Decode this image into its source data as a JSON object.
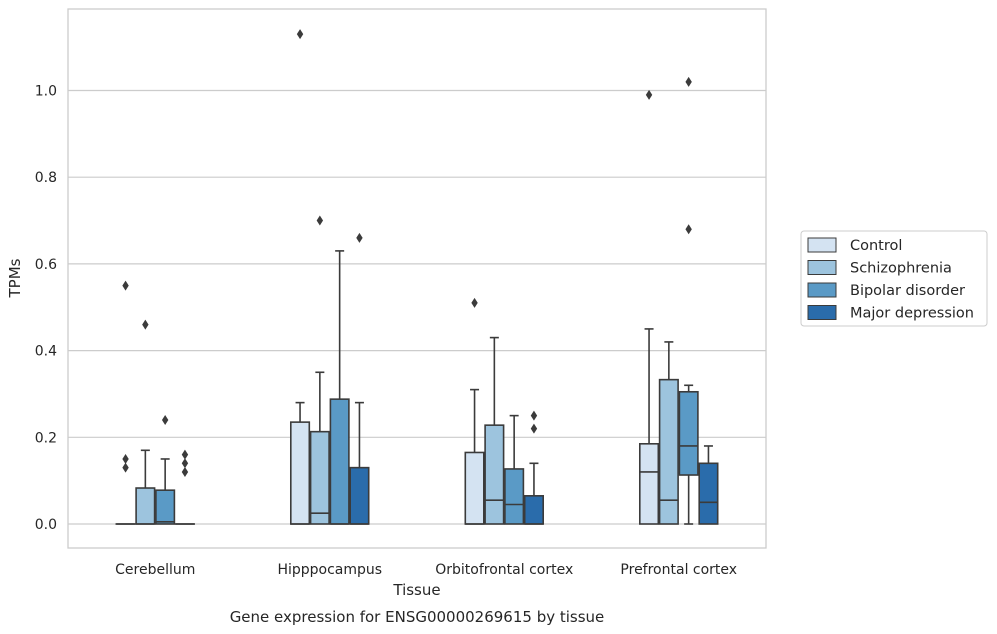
{
  "chart_data": {
    "type": "box",
    "xlabel": "Tissue",
    "ylabel": "TPMs",
    "caption": "Gene expression for ENSG00000269615 by tissue",
    "ylim": [
      -0.055,
      1.19
    ],
    "yticks": [
      0.0,
      0.2,
      0.4,
      0.6,
      0.8,
      1.0
    ],
    "ytick_labels": [
      "0.0",
      "0.2",
      "0.4",
      "0.6",
      "0.8",
      "1.0"
    ],
    "grid": "horizontal",
    "legend_position": "right",
    "categories": [
      "Cerebellum",
      "Hipppocampus",
      "Orbitofrontal cortex",
      "Prefrontal cortex"
    ],
    "series": [
      {
        "name": "Control",
        "color": "#d4e3f2",
        "boxes": [
          {
            "q1": 0.0,
            "median": 0.0,
            "q3": 0.0,
            "whisker_low": 0.0,
            "whisker_high": 0.0,
            "outliers": [
              0.55,
              0.15,
              0.13
            ]
          },
          {
            "q1": 0.0,
            "median": 0.0,
            "q3": 0.235,
            "whisker_low": 0.0,
            "whisker_high": 0.28,
            "outliers": [
              1.13
            ]
          },
          {
            "q1": 0.0,
            "median": 0.0,
            "q3": 0.165,
            "whisker_low": 0.0,
            "whisker_high": 0.31,
            "outliers": [
              0.51
            ]
          },
          {
            "q1": 0.0,
            "median": 0.12,
            "q3": 0.185,
            "whisker_low": 0.0,
            "whisker_high": 0.45,
            "outliers": [
              0.99
            ]
          }
        ]
      },
      {
        "name": "Schizophrenia",
        "color": "#9dc4de",
        "boxes": [
          {
            "q1": 0.0,
            "median": 0.0,
            "q3": 0.083,
            "whisker_low": 0.0,
            "whisker_high": 0.17,
            "outliers": [
              0.46
            ]
          },
          {
            "q1": 0.0,
            "median": 0.025,
            "q3": 0.213,
            "whisker_low": 0.0,
            "whisker_high": 0.35,
            "outliers": [
              0.7
            ]
          },
          {
            "q1": 0.0,
            "median": 0.055,
            "q3": 0.228,
            "whisker_low": 0.0,
            "whisker_high": 0.43,
            "outliers": []
          },
          {
            "q1": 0.0,
            "median": 0.055,
            "q3": 0.333,
            "whisker_low": 0.0,
            "whisker_high": 0.42,
            "outliers": []
          }
        ]
      },
      {
        "name": "Bipolar disorder",
        "color": "#5a9ac6",
        "boxes": [
          {
            "q1": 0.0,
            "median": 0.005,
            "q3": 0.078,
            "whisker_low": 0.0,
            "whisker_high": 0.15,
            "outliers": [
              0.24
            ]
          },
          {
            "q1": 0.0,
            "median": 0.0,
            "q3": 0.288,
            "whisker_low": 0.0,
            "whisker_high": 0.63,
            "outliers": []
          },
          {
            "q1": 0.0,
            "median": 0.045,
            "q3": 0.127,
            "whisker_low": 0.0,
            "whisker_high": 0.25,
            "outliers": []
          },
          {
            "q1": 0.113,
            "median": 0.18,
            "q3": 0.305,
            "whisker_low": 0.0,
            "whisker_high": 0.32,
            "outliers": [
              1.02,
              0.68
            ]
          }
        ]
      },
      {
        "name": "Major depression",
        "color": "#2a6cab",
        "boxes": [
          {
            "q1": 0.0,
            "median": 0.0,
            "q3": 0.0,
            "whisker_low": 0.0,
            "whisker_high": 0.0,
            "outliers": [
              0.16,
              0.14,
              0.12
            ]
          },
          {
            "q1": 0.0,
            "median": 0.0,
            "q3": 0.13,
            "whisker_low": 0.0,
            "whisker_high": 0.28,
            "outliers": [
              0.66
            ]
          },
          {
            "q1": 0.0,
            "median": 0.0,
            "q3": 0.065,
            "whisker_low": 0.0,
            "whisker_high": 0.14,
            "outliers": [
              0.25,
              0.22
            ]
          },
          {
            "q1": 0.0,
            "median": 0.05,
            "q3": 0.14,
            "whisker_low": 0.0,
            "whisker_high": 0.18,
            "outliers": []
          }
        ]
      }
    ],
    "colors": {
      "grid": "#cccccc",
      "frame": "#cccccc",
      "box_edge": "#3b3b3b",
      "text": "#262626"
    }
  }
}
